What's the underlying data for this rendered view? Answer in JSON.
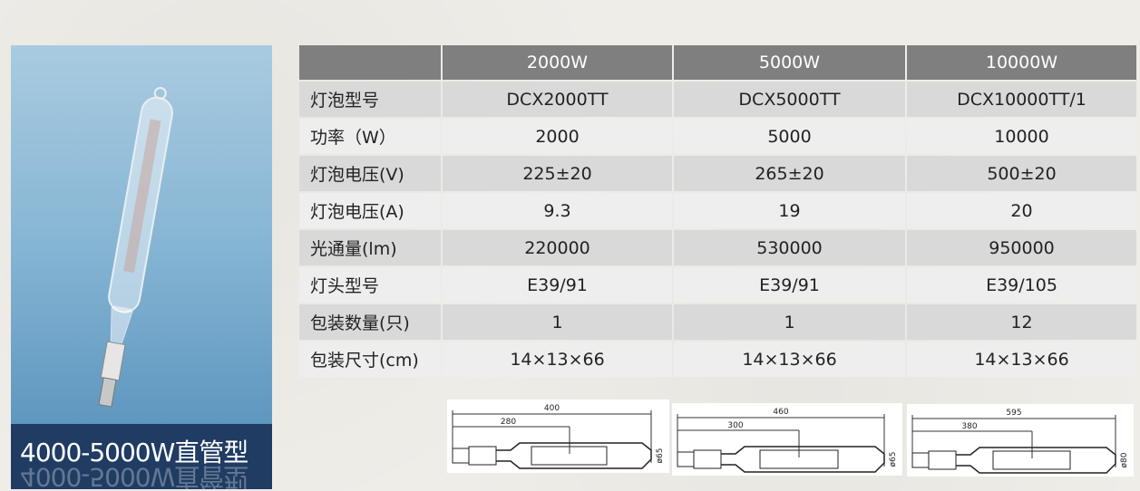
{
  "photo": {
    "caption": "4000-5000W直管型"
  },
  "table": {
    "headers": [
      "",
      "2000W",
      "5000W",
      "10000W"
    ],
    "rows": [
      [
        "灯泡型号",
        "DCX2000TT",
        "DCX5000TT",
        "DCX10000TT/1"
      ],
      [
        "功率（W）",
        "2000",
        "5000",
        "10000"
      ],
      [
        "灯泡电压(V)",
        "225±20",
        "265±20",
        "500±20"
      ],
      [
        "灯泡电压(A)",
        "9.3",
        "19",
        "20"
      ],
      [
        "光通量(lm)",
        "220000",
        "530000",
        "950000"
      ],
      [
        "灯头型号",
        "E39/91",
        "E39/91",
        "E39/105"
      ],
      [
        "包装数量(只)",
        "1",
        "1",
        "12"
      ],
      [
        "包装尺寸(cm)",
        "14×13×66",
        "14×13×66",
        "14×13×66"
      ]
    ]
  },
  "drawings": [
    {
      "length": "400",
      "arc": "280",
      "diameter": "ø65"
    },
    {
      "length": "460",
      "arc": "300",
      "diameter": "ø65"
    },
    {
      "length": "595",
      "arc": "380",
      "diameter": "ø80"
    }
  ]
}
